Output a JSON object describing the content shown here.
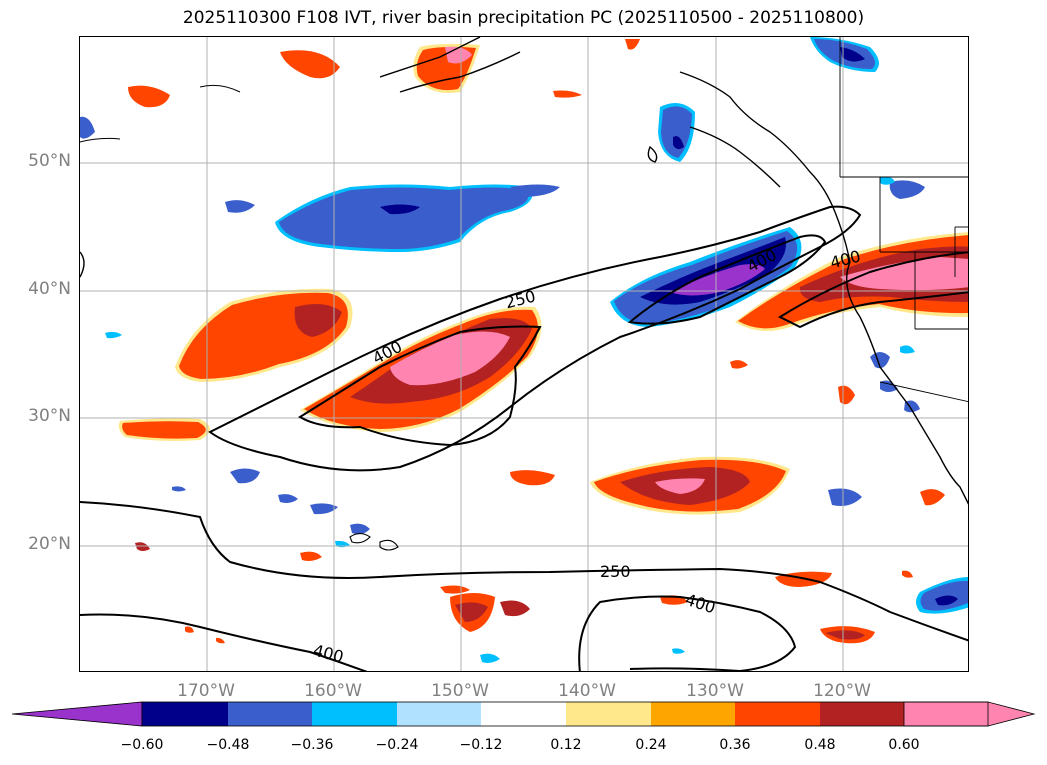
{
  "title": "2025110300 F108 IVT, river basin precipitation PC (2025110500 - 2025110800)",
  "map": {
    "region": "North Pacific",
    "lat_labels": [
      "50°N",
      "40°N",
      "30°N",
      "20°N"
    ],
    "lon_labels": [
      "170°W",
      "160°W",
      "150°W",
      "140°W",
      "130°W",
      "120°W"
    ],
    "contour_labels": [
      "250",
      "400",
      "400",
      "400",
      "250",
      "400",
      "400"
    ]
  },
  "colorbar": {
    "ticks": [
      "−0.60",
      "−0.48",
      "−0.36",
      "−0.24",
      "−0.12",
      "0.12",
      "0.24",
      "0.36",
      "0.48",
      "0.60"
    ],
    "colors": [
      "#9933cc",
      "#00008b",
      "#3a5fcd",
      "#00bfff",
      "#b0e2ff",
      "#ffffff",
      "#ffe88c",
      "#ffa500",
      "#ff4500",
      "#b22222",
      "#ff85b0"
    ]
  }
}
